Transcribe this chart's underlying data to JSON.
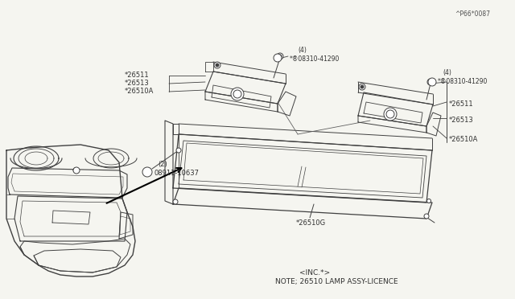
{
  "bg_color": "#f5f5f0",
  "line_color": "#404040",
  "text_color": "#303030",
  "note_line1": "NOTE; 26510 LAMP ASSY-LICENCE",
  "note_line2": "<INC.*>",
  "ref_code": "^P66*0087",
  "fig_width": 6.4,
  "fig_height": 3.72,
  "dpi": 100
}
